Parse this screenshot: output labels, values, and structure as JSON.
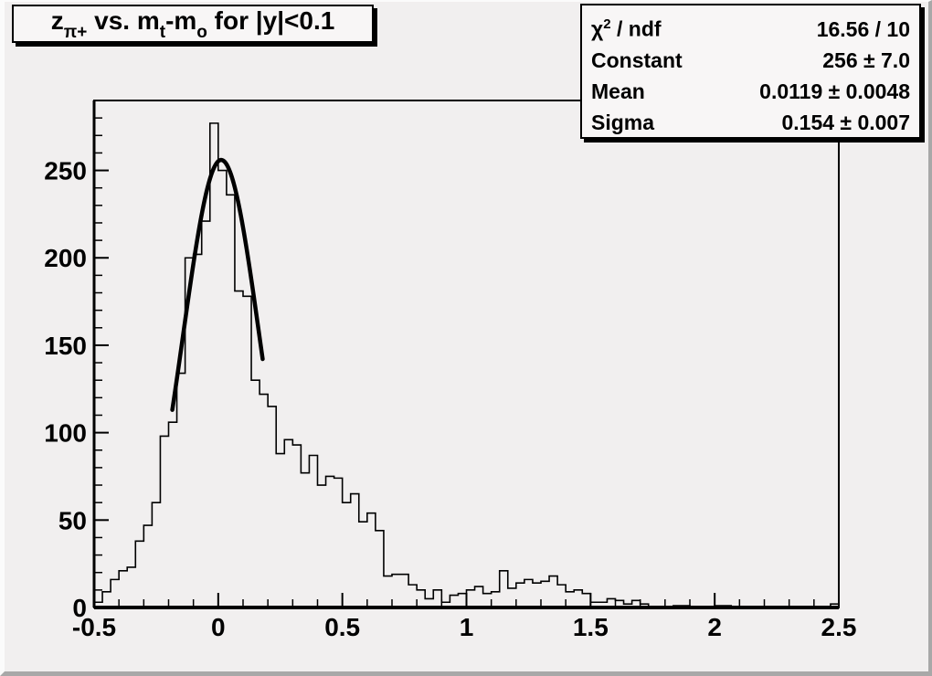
{
  "title": {
    "plain_text": "z_{pi+} vs. m_t-m_o for |y|<0.1",
    "segments": [
      {
        "t": "z"
      },
      {
        "t": "π+",
        "sub": true
      },
      {
        "t": " vs. m"
      },
      {
        "t": "t",
        "sub": true
      },
      {
        "t": "-m"
      },
      {
        "t": "o",
        "sub": true
      },
      {
        "t": " for |y|<0.1"
      }
    ]
  },
  "stats": {
    "rows": [
      {
        "label_segments": [
          {
            "t": "χ"
          },
          {
            "t": "2",
            "sup": true
          },
          {
            "t": " / ndf"
          }
        ],
        "value": "16.56 / 10"
      },
      {
        "label_segments": [
          {
            "t": "Constant"
          }
        ],
        "value": "256 ± 7.0"
      },
      {
        "label_segments": [
          {
            "t": "Mean"
          }
        ],
        "value": "0.0119 ± 0.0048"
      },
      {
        "label_segments": [
          {
            "t": "Sigma"
          }
        ],
        "value": "0.154 ± 0.007"
      }
    ]
  },
  "chart_data": {
    "type": "bar",
    "subtype": "histogram-with-gaussian-fit",
    "title": "z_{pi+} vs. m_t-m_o for |y|<0.1",
    "xlabel": "",
    "ylabel": "",
    "xlim": [
      -0.5,
      2.5
    ],
    "ylim": [
      0,
      290
    ],
    "grid": false,
    "bin_start": -0.5,
    "bin_width": 0.033333,
    "n_bins": 90,
    "counts": [
      3,
      9,
      16,
      21,
      23,
      38,
      47,
      60,
      98,
      106,
      134,
      200,
      202,
      221,
      277,
      250,
      236,
      181,
      178,
      130,
      122,
      115,
      88,
      96,
      93,
      77,
      87,
      70,
      75,
      74,
      60,
      65,
      49,
      54,
      44,
      18,
      19,
      19,
      13,
      10,
      5,
      10,
      3,
      7,
      8,
      10,
      12,
      8,
      9,
      21,
      11,
      14,
      16,
      14,
      15,
      18,
      13,
      9,
      10,
      8,
      3,
      3,
      5,
      4,
      2,
      4,
      2,
      0,
      0,
      0,
      1,
      1,
      0,
      0,
      0,
      1,
      1,
      0,
      0,
      0,
      0,
      0,
      0,
      0,
      0,
      0,
      0,
      0,
      0,
      2
    ],
    "fit": {
      "type": "gaussian",
      "constant": 256,
      "mean": 0.0119,
      "sigma": 0.154,
      "chi2": 16.56,
      "ndf": 10,
      "draw_range": [
        -0.185,
        0.182
      ]
    },
    "x_axis": {
      "min": -0.5,
      "max": 2.5,
      "major_step": 0.5,
      "minor_step": 0.1,
      "tick_labels": [
        "-0.5",
        "0",
        "0.5",
        "1",
        "1.5",
        "2",
        "2.5"
      ]
    },
    "y_axis": {
      "min": 0,
      "max": 290,
      "major_step": 50,
      "minor_step": 10,
      "tick_labels": [
        "0",
        "50",
        "100",
        "150",
        "200",
        "250"
      ]
    },
    "colors": {
      "line": "#000000",
      "fit_line": "#000000",
      "background": "#f1efef",
      "box_fill": "#f8f6f6"
    }
  }
}
